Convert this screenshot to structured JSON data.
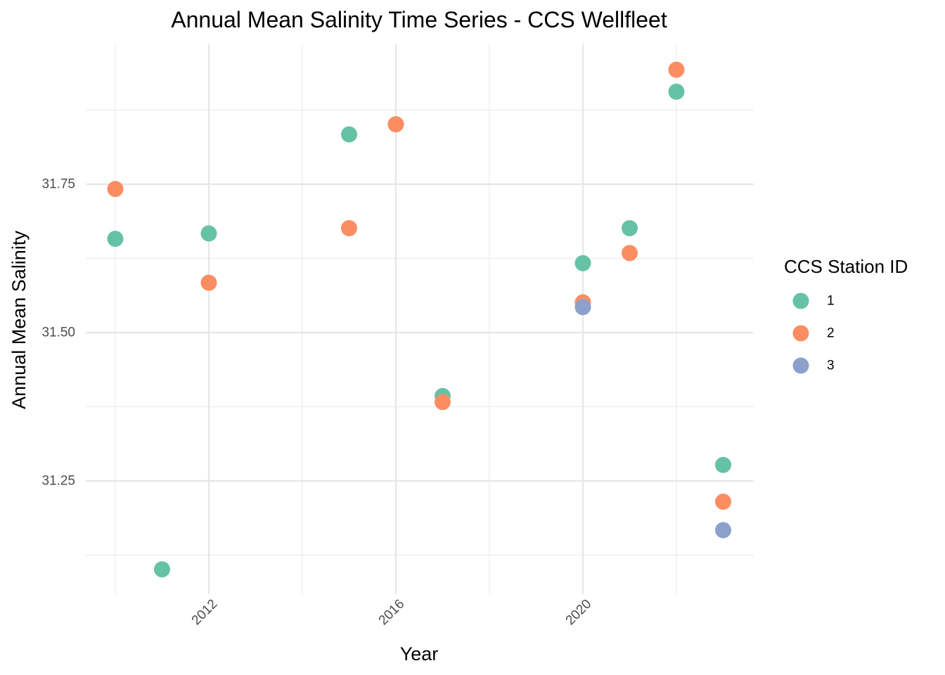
{
  "chart_data": {
    "type": "scatter",
    "title": "Annual Mean Salinity Time Series - CCS Wellfleet",
    "xlabel": "Year",
    "ylabel": "Annual Mean Salinity",
    "xlim": [
      2009.4,
      2023.7
    ],
    "ylim": [
      31.095,
      31.968
    ],
    "x_ticks": [
      2012,
      2016,
      2020
    ],
    "y_ticks": [
      31.25,
      31.5,
      31.75
    ],
    "x_tick_labels": [
      "2012",
      "2016",
      "2020"
    ],
    "y_tick_labels": [
      "31.25",
      "31.50",
      "31.75"
    ],
    "x_tick_label_rotation": "45 degrees",
    "grid": true,
    "legend": {
      "title": "CCS Station ID",
      "placement": "right"
    },
    "series": [
      {
        "name": "1",
        "color": "#66C2A5",
        "points": [
          {
            "x": 2010,
            "y": 31.658
          },
          {
            "x": 2011,
            "y": 31.101
          },
          {
            "x": 2012,
            "y": 31.667
          },
          {
            "x": 2015,
            "y": 31.834
          },
          {
            "x": 2016,
            "y": 31.851
          },
          {
            "x": 2017,
            "y": 31.393
          },
          {
            "x": 2020,
            "y": 31.617
          },
          {
            "x": 2021,
            "y": 31.676
          },
          {
            "x": 2022,
            "y": 31.906
          },
          {
            "x": 2023,
            "y": 31.277
          }
        ]
      },
      {
        "name": "2",
        "color": "#FC8D62",
        "points": [
          {
            "x": 2010,
            "y": 31.742
          },
          {
            "x": 2012,
            "y": 31.584
          },
          {
            "x": 2015,
            "y": 31.676
          },
          {
            "x": 2016,
            "y": 31.851
          },
          {
            "x": 2017,
            "y": 31.383
          },
          {
            "x": 2020,
            "y": 31.551
          },
          {
            "x": 2021,
            "y": 31.634
          },
          {
            "x": 2022,
            "y": 31.943
          },
          {
            "x": 2023,
            "y": 31.215
          }
        ]
      },
      {
        "name": "3",
        "color": "#8DA0CB",
        "points": [
          {
            "x": 2020,
            "y": 31.543
          },
          {
            "x": 2023,
            "y": 31.167
          }
        ]
      }
    ]
  }
}
